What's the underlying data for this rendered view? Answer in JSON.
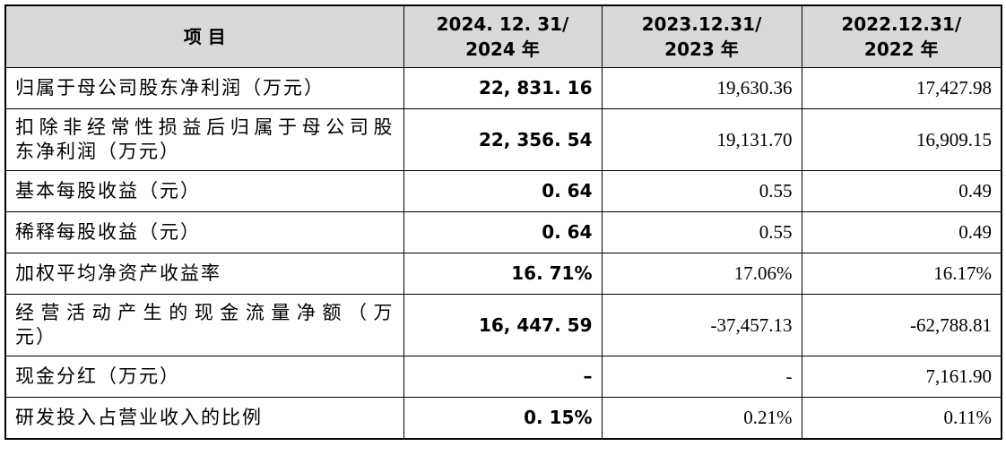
{
  "table": {
    "header": [
      [
        "项 目"
      ],
      [
        "2024. 12. 31/",
        "2024 年"
      ],
      [
        "2023.12.31/",
        "2023 年"
      ],
      [
        "2022.12.31/",
        "2022 年"
      ]
    ],
    "rows": [
      {
        "label": [
          "归属于母公司股东净利润（万元）"
        ],
        "values": [
          "22, 831. 16",
          "19,630.36",
          "17,427.98"
        ]
      },
      {
        "label": [
          "扣除非经常性损益后归属于母公司股",
          "东净利润（万元）"
        ],
        "values": [
          "22, 356. 54",
          "19,131.70",
          "16,909.15"
        ]
      },
      {
        "label": [
          "基本每股收益（元）"
        ],
        "values": [
          "0. 64",
          "0.55",
          "0.49"
        ]
      },
      {
        "label": [
          "稀释每股收益（元）"
        ],
        "values": [
          "0. 64",
          "0.55",
          "0.49"
        ]
      },
      {
        "label": [
          "加权平均净资产收益率"
        ],
        "values": [
          "16. 71%",
          "17.06%",
          "16.17%"
        ]
      },
      {
        "label": [
          "经营活动产生的现金流量净额（万",
          "元）"
        ],
        "values": [
          "16, 447. 59",
          "-37,457.13",
          "-62,788.81"
        ]
      },
      {
        "label": [
          "现金分红（万元）"
        ],
        "values": [
          "–",
          "-",
          "7,161.90"
        ]
      },
      {
        "label": [
          "研发投入占营业收入的比例"
        ],
        "values": [
          "0. 15%",
          "0.21%",
          "0.11%"
        ]
      }
    ]
  }
}
